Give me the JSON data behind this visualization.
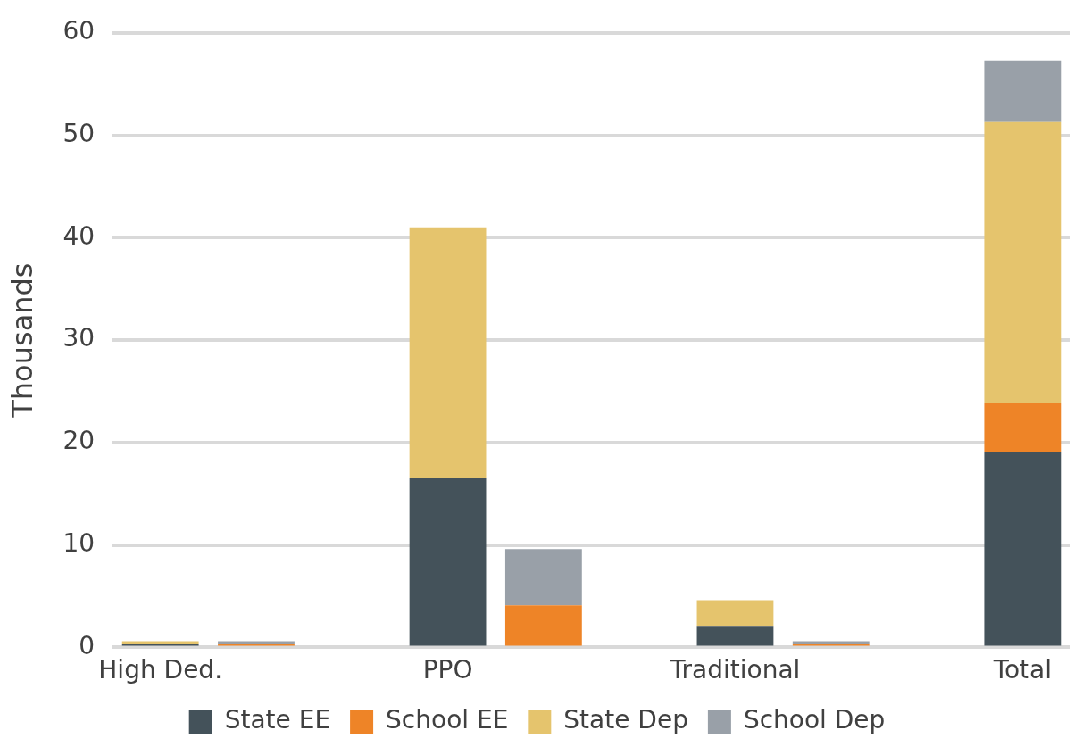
{
  "chart_data": {
    "type": "bar",
    "stacked": true,
    "ylabel": "Thousands",
    "categories": [
      "High Ded.",
      null,
      null,
      "PPO",
      null,
      null,
      "Traditional",
      null,
      null,
      "Total"
    ],
    "series": [
      {
        "name": "State EE",
        "color": "#44525a",
        "values": [
          0.3,
          null,
          null,
          16.5,
          null,
          null,
          2.1,
          null,
          null,
          19.1
        ]
      },
      {
        "name": "School EE",
        "color": "#ee8427",
        "values": [
          null,
          0.3,
          null,
          null,
          4.1,
          null,
          null,
          0.3,
          null,
          4.8
        ]
      },
      {
        "name": "State Dep",
        "color": "#e5c46d",
        "values": [
          0.3,
          null,
          null,
          24.5,
          null,
          null,
          2.5,
          null,
          null,
          27.4
        ]
      },
      {
        "name": "School Dep",
        "color": "#99a0a8",
        "values": [
          null,
          0.3,
          null,
          null,
          5.5,
          null,
          null,
          0.3,
          null,
          6.0
        ]
      }
    ],
    "ylim": [
      0,
      60
    ],
    "yticks": [
      0,
      10,
      20,
      30,
      40,
      50,
      60
    ],
    "grid": "y",
    "legend": "bottom"
  }
}
